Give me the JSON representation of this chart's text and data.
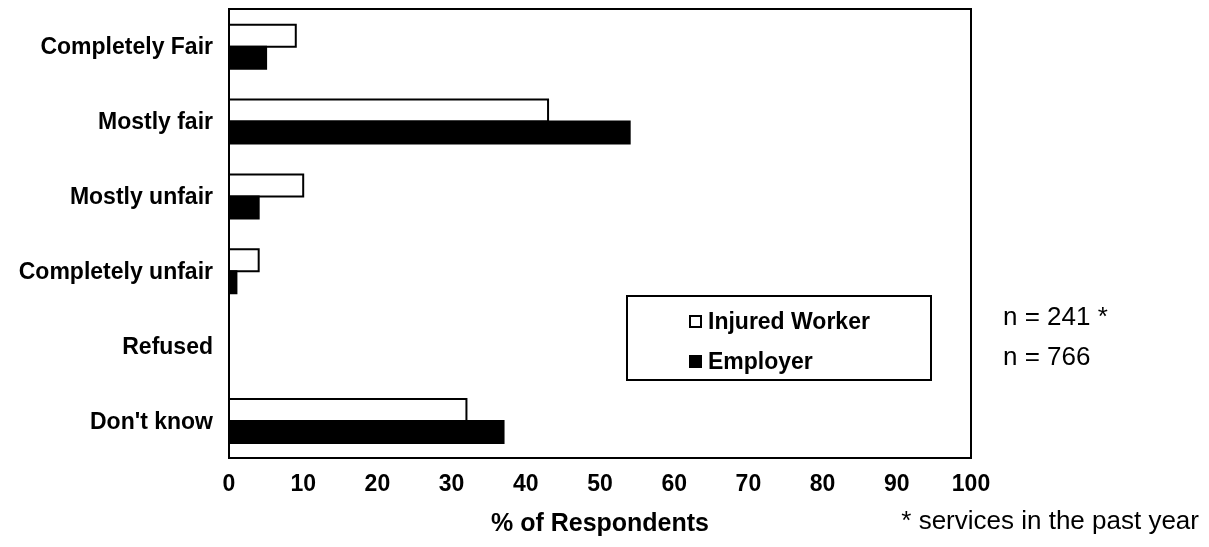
{
  "chart_data": {
    "type": "bar",
    "orientation": "horizontal",
    "categories": [
      "Completely Fair",
      "Mostly fair",
      "Mostly unfair",
      "Completely unfair",
      "Refused",
      "Don't know"
    ],
    "series": [
      {
        "name": "Injured Worker",
        "color": "#ffffff",
        "values": [
          9,
          43,
          10,
          4,
          0,
          32
        ]
      },
      {
        "name": "Employer",
        "color": "#000000",
        "values": [
          5,
          54,
          4,
          1,
          0,
          37
        ]
      }
    ],
    "xlim": [
      0,
      100
    ],
    "xticks": [
      0,
      10,
      20,
      30,
      40,
      50,
      60,
      70,
      80,
      90,
      100
    ],
    "xlabel": "% of Respondents",
    "legend": "right",
    "annotations": [
      "n = 241 *",
      "n = 766",
      "* services in the past year"
    ]
  }
}
